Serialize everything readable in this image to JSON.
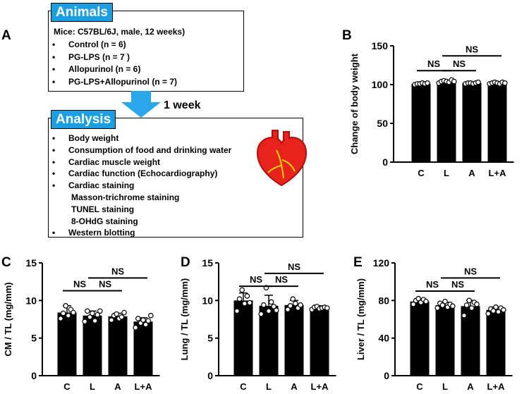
{
  "panels": {
    "A": "A",
    "B": "B",
    "C": "C",
    "D": "D",
    "E": "E"
  },
  "animals_box": {
    "title": "Animals",
    "header": "Mice: C57BL/6J,  male, 12 weeks)",
    "items": [
      "Control (n = 6)",
      "PG-LPS (n = 7 )",
      "Allopurinol (n = 6)",
      "PG-LPS+Allopurinol (n = 7)"
    ]
  },
  "arrow_label": "1 week",
  "analysis_box": {
    "title": "Analysis",
    "items": [
      {
        "text": "Body weight",
        "bullet": true
      },
      {
        "text": "Consumption of food and drinking water",
        "bullet": true
      },
      {
        "text": "Cardiac muscle weight",
        "bullet": true
      },
      {
        "text": "Cardiac function  (Echocardiography)",
        "bullet": true
      },
      {
        "text": "Cardiac staining",
        "bullet": true
      },
      {
        "text": "Masson-trichrome staining",
        "bullet": false
      },
      {
        "text": "TUNEL staining",
        "bullet": false
      },
      {
        "text": "8-OHdG staining",
        "bullet": false
      },
      {
        "text": "Western blotting",
        "bullet": true
      }
    ],
    "heart_icon": "heart-icon",
    "heart_color": "#e8231c"
  },
  "chart_data": [
    {
      "id": "B",
      "type": "bar",
      "categories": [
        "C",
        "L",
        "A",
        "L+A"
      ],
      "values": [
        101,
        104,
        102,
        102
      ],
      "errors": [
        1,
        1,
        1,
        1
      ],
      "points": [
        [
          100,
          101,
          101,
          102,
          101,
          102
        ],
        [
          102,
          104,
          105,
          104,
          103,
          106,
          104
        ],
        [
          101,
          102,
          102,
          101,
          102,
          103
        ],
        [
          101,
          102,
          103,
          102,
          101,
          103,
          102
        ]
      ],
      "ylabel": "Change of body weight",
      "ylim": [
        0,
        150
      ],
      "yticks": [
        0,
        50,
        100,
        150
      ],
      "sig": [
        {
          "from": 0,
          "to": 1,
          "label": "NS",
          "y": 118
        },
        {
          "from": 1,
          "to": 2,
          "label": "NS",
          "y": 118
        },
        {
          "from": 1,
          "to": 3,
          "label": "NS",
          "y": 137
        }
      ]
    },
    {
      "id": "C",
      "type": "bar",
      "categories": [
        "C",
        "L",
        "A",
        "L+A"
      ],
      "values": [
        8.4,
        8.0,
        7.9,
        7.2
      ],
      "errors": [
        0.9,
        0.6,
        0.4,
        0.5
      ],
      "points": [
        [
          7.6,
          8.3,
          9.3,
          8.0,
          8.8,
          8.4
        ],
        [
          7.2,
          8.6,
          7.8,
          8.3,
          7.3,
          8.1,
          8.6
        ],
        [
          7.4,
          8.0,
          8.2,
          7.6,
          7.8,
          8.4
        ],
        [
          6.4,
          7.6,
          7.0,
          7.4,
          6.8,
          7.3,
          8.0
        ]
      ],
      "ylabel": "CM / TL (mg/mm)",
      "ylim": [
        0,
        15
      ],
      "yticks": [
        0,
        5,
        10,
        15
      ],
      "sig": [
        {
          "from": 0,
          "to": 1,
          "label": "NS",
          "y": 11.3
        },
        {
          "from": 1,
          "to": 2,
          "label": "NS",
          "y": 11.3
        },
        {
          "from": 1,
          "to": 3,
          "label": "NS",
          "y": 13.0
        }
      ]
    },
    {
      "id": "D",
      "type": "bar",
      "categories": [
        "C",
        "L",
        "A",
        "L+A"
      ],
      "values": [
        10.0,
        9.3,
        9.4,
        9.0
      ],
      "errors": [
        1.0,
        1.4,
        0.6,
        0.3
      ],
      "points": [
        [
          8.6,
          10.2,
          11.4,
          9.6,
          10.6,
          9.7
        ],
        [
          8.2,
          9.4,
          11.7,
          8.6,
          9.8,
          9.2,
          8.7
        ],
        [
          8.8,
          9.3,
          10.2,
          9.6,
          9.0,
          9.4
        ],
        [
          8.8,
          9.1,
          9.2,
          8.9,
          9.0,
          9.1,
          9.0
        ]
      ],
      "ylabel": "Lung / TL (mg/mm)",
      "ylim": [
        0,
        15
      ],
      "yticks": [
        0,
        5,
        10,
        15
      ],
      "sig": [
        {
          "from": 0,
          "to": 1,
          "label": "NS",
          "y": 11.9
        },
        {
          "from": 1,
          "to": 2,
          "label": "NS",
          "y": 11.9
        },
        {
          "from": 1,
          "to": 3,
          "label": "NS",
          "y": 13.6
        }
      ]
    },
    {
      "id": "E",
      "type": "bar",
      "categories": [
        "C",
        "L",
        "A",
        "L+A"
      ],
      "values": [
        79,
        75,
        74,
        70
      ],
      "errors": [
        3,
        3,
        6,
        3
      ],
      "points": [
        [
          76,
          80,
          82,
          78,
          81,
          79
        ],
        [
          72,
          77,
          75,
          79,
          73,
          76,
          74
        ],
        [
          64,
          75,
          80,
          72,
          78,
          76
        ],
        [
          66,
          71,
          69,
          73,
          68,
          72,
          70
        ]
      ],
      "ylabel": "Liver / TL (mg/mm)",
      "ylim": [
        0,
        120
      ],
      "yticks": [
        0,
        40,
        80,
        120
      ],
      "sig": [
        {
          "from": 0,
          "to": 1,
          "label": "NS",
          "y": 90
        },
        {
          "from": 1,
          "to": 2,
          "label": "NS",
          "y": 90
        },
        {
          "from": 1,
          "to": 3,
          "label": "NS",
          "y": 104
        }
      ]
    }
  ]
}
